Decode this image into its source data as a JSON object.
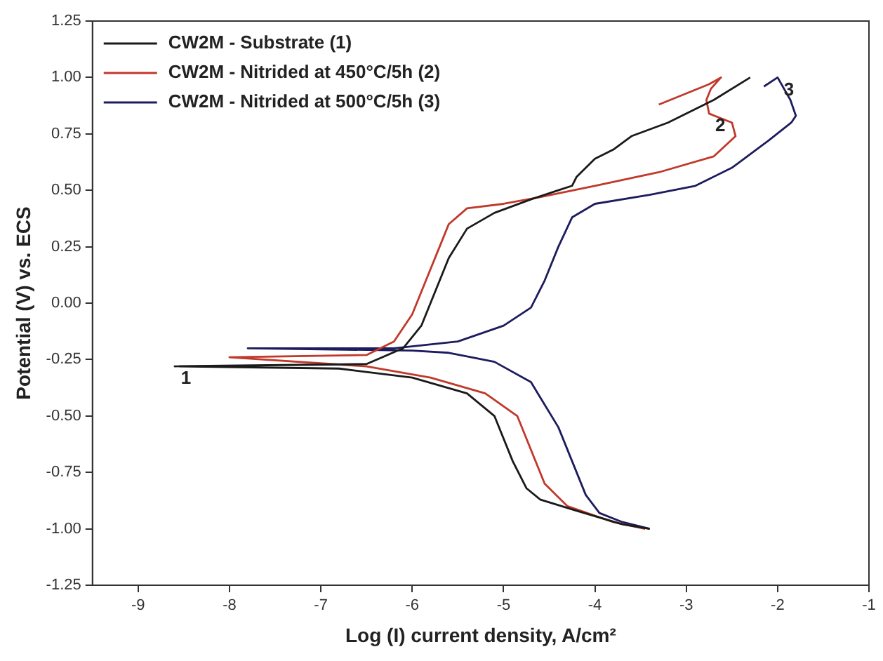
{
  "chart_data": {
    "type": "line",
    "xlabel": "Log (I) current density, A/cm²",
    "ylabel": "Potential (V) vs. ECS",
    "xlim": [
      -9.5,
      -1
    ],
    "xticks": [
      -9,
      -8,
      -7,
      -6,
      -5,
      -4,
      -3,
      -2,
      -1
    ],
    "ylim": [
      -1.25,
      1.25
    ],
    "yticks": [
      {
        "value": -1.25,
        "label": "-1.25"
      },
      {
        "value": -1,
        "label": "-1.00"
      },
      {
        "value": -0.75,
        "label": "-0.75"
      },
      {
        "value": -0.5,
        "label": "-0.50"
      },
      {
        "value": -0.25,
        "label": "-0.25"
      },
      {
        "value": 0,
        "label": "0.00"
      },
      {
        "value": 0.25,
        "label": "0.25"
      },
      {
        "value": 0.5,
        "label": "0.50"
      },
      {
        "value": 0.75,
        "label": "0.75"
      },
      {
        "value": 1,
        "label": "1.00"
      },
      {
        "value": 1.25,
        "label": "1.25"
      }
    ],
    "grid": false,
    "legend": "top left",
    "marker": "none",
    "line_style": "solid",
    "series": [
      {
        "name": "CW2M - Substrate (1)",
        "color": "#1a1a1a",
        "x": [
          -3.4,
          -3.7,
          -4.2,
          -4.6,
          -4.75,
          -4.9,
          -5.1,
          -5.4,
          -6,
          -6.8,
          -8.6,
          -6.5,
          -6.1,
          -5.9,
          -5.75,
          -5.6,
          -5.4,
          -5.1,
          -4.7,
          -4.4,
          -4.25,
          -4.2,
          -4.0,
          -3.8,
          -3.6,
          -3.2,
          -2.7,
          -2.3
        ],
        "values": [
          -1.0,
          -0.98,
          -0.92,
          -0.87,
          -0.82,
          -0.7,
          -0.5,
          -0.4,
          -0.33,
          -0.29,
          -0.28,
          -0.27,
          -0.2,
          -0.1,
          0.05,
          0.2,
          0.33,
          0.4,
          0.46,
          0.5,
          0.52,
          0.56,
          0.64,
          0.68,
          0.74,
          0.8,
          0.9,
          1.0
        ]
      },
      {
        "name": "CW2M - Nitrided at 450°C/5h (2)",
        "color": "#c0392b",
        "x": [
          -3.45,
          -3.8,
          -4.3,
          -4.55,
          -4.7,
          -4.85,
          -5.2,
          -5.8,
          -6.5,
          -8.0,
          -6.5,
          -6.2,
          -6.0,
          -5.85,
          -5.7,
          -5.6,
          -5.4,
          -5.0,
          -4.6,
          -4.0,
          -3.3,
          -2.7,
          -2.46,
          -2.5,
          -2.75,
          -2.78,
          -2.73,
          -2.62,
          -2.75,
          -3.3
        ],
        "values": [
          -1.0,
          -0.97,
          -0.9,
          -0.8,
          -0.65,
          -0.5,
          -0.4,
          -0.33,
          -0.28,
          -0.24,
          -0.23,
          -0.17,
          -0.05,
          0.1,
          0.25,
          0.35,
          0.42,
          0.44,
          0.47,
          0.52,
          0.58,
          0.65,
          0.74,
          0.8,
          0.84,
          0.9,
          0.95,
          1.0,
          0.97,
          0.88
        ]
      },
      {
        "name": "CW2M - Nitrided at 500°C/5h (3)",
        "color": "#1c1c5e",
        "x": [
          -3.4,
          -3.7,
          -3.95,
          -4.1,
          -4.25,
          -4.4,
          -4.7,
          -5.1,
          -5.6,
          -6.0,
          -7.8,
          -6.2,
          -5.5,
          -5.0,
          -4.7,
          -4.55,
          -4.4,
          -4.25,
          -4.0,
          -3.4,
          -2.9,
          -2.5,
          -2.1,
          -1.85,
          -1.8,
          -1.86,
          -2.0,
          -2.15
        ],
        "values": [
          -1.0,
          -0.97,
          -0.93,
          -0.85,
          -0.7,
          -0.55,
          -0.35,
          -0.26,
          -0.22,
          -0.21,
          -0.2,
          -0.2,
          -0.17,
          -0.1,
          -0.02,
          0.1,
          0.25,
          0.38,
          0.44,
          0.48,
          0.52,
          0.6,
          0.72,
          0.8,
          0.83,
          0.9,
          1.0,
          0.96
        ]
      }
    ],
    "annotations": [
      {
        "text": "1",
        "x": -8.6,
        "y": -0.28
      },
      {
        "text": "2",
        "x": -2.75,
        "y": 0.84
      },
      {
        "text": "3",
        "x": -2.0,
        "y": 1.0
      }
    ]
  }
}
